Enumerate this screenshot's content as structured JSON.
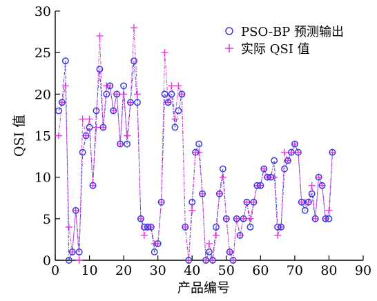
{
  "chart_data": {
    "type": "line",
    "title": "",
    "xlabel": "产品编号",
    "ylabel": "QSI 值",
    "xlim": [
      0,
      90
    ],
    "ylim": [
      0,
      30
    ],
    "x_ticks": [
      0,
      10,
      20,
      30,
      40,
      50,
      60,
      70,
      80,
      90
    ],
    "y_ticks": [
      0,
      5,
      10,
      15,
      20,
      25,
      30
    ],
    "grid": false,
    "legend_position": "top-right",
    "series": [
      {
        "name": "PSO-BP 预测输出",
        "marker": "circle",
        "color": "#3b3bd6",
        "x": [
          1,
          2,
          3,
          4,
          5,
          6,
          7,
          8,
          9,
          10,
          11,
          12,
          13,
          14,
          15,
          16,
          17,
          18,
          19,
          20,
          21,
          22,
          23,
          24,
          25,
          26,
          27,
          28,
          29,
          30,
          31,
          32,
          33,
          34,
          35,
          36,
          37,
          38,
          39,
          40,
          41,
          42,
          43,
          44,
          45,
          46,
          47,
          48,
          49,
          50,
          51,
          52,
          53,
          54,
          55,
          56,
          57,
          58,
          59,
          60,
          61,
          62,
          63,
          64,
          65,
          66,
          67,
          68,
          69,
          70,
          71,
          72,
          73,
          74,
          75,
          76,
          77,
          78,
          79,
          80,
          81
        ],
        "values": [
          18,
          19,
          24,
          0,
          1,
          6,
          1,
          13,
          15,
          16,
          9,
          18,
          23,
          16,
          20,
          21,
          18,
          20,
          14,
          21,
          14,
          19,
          24,
          19,
          5,
          4,
          4,
          4,
          1,
          2,
          7,
          20,
          19,
          20,
          16,
          18,
          20,
          4,
          0,
          7,
          13,
          14,
          8,
          0,
          1,
          0,
          4,
          8,
          11,
          5,
          1,
          0,
          5,
          3,
          5,
          7,
          4,
          7,
          9,
          9,
          11,
          10,
          10,
          12,
          4,
          4,
          11,
          12,
          13,
          14,
          13,
          7,
          6,
          7,
          8,
          5,
          10,
          9,
          5,
          5,
          13
        ]
      },
      {
        "name": "实际 QSI 值",
        "marker": "plus",
        "color": "#e13ad6",
        "x": [
          1,
          2,
          3,
          4,
          5,
          6,
          7,
          8,
          9,
          10,
          11,
          12,
          13,
          14,
          15,
          16,
          17,
          18,
          19,
          20,
          21,
          22,
          23,
          24,
          25,
          26,
          27,
          28,
          29,
          30,
          31,
          32,
          33,
          34,
          35,
          36,
          37,
          38,
          39,
          40,
          41,
          42,
          43,
          44,
          45,
          46,
          47,
          48,
          49,
          50,
          51,
          52,
          53,
          54,
          55,
          56,
          57,
          58,
          59,
          60,
          61,
          62,
          63,
          64,
          65,
          66,
          67,
          68,
          69,
          70,
          71,
          72,
          73,
          74,
          75,
          76,
          77,
          78,
          79,
          80,
          81
        ],
        "values": [
          15,
          19,
          21,
          4,
          1,
          6,
          0,
          17,
          15,
          17,
          9,
          16,
          27,
          16,
          21,
          21,
          18,
          20,
          14,
          20,
          15,
          19,
          28,
          20,
          5,
          3,
          4,
          4,
          2,
          2,
          7,
          25,
          19,
          21,
          17,
          21,
          20,
          4,
          0,
          6,
          13,
          13,
          8,
          0,
          2,
          0,
          3,
          8,
          10,
          5,
          1,
          0,
          5,
          3,
          5,
          7,
          5,
          7,
          9,
          9,
          11,
          10,
          10,
          10,
          3,
          4,
          13,
          12,
          13,
          14,
          13,
          7,
          7,
          7,
          9,
          5,
          10,
          9,
          5,
          6,
          13
        ]
      }
    ]
  }
}
